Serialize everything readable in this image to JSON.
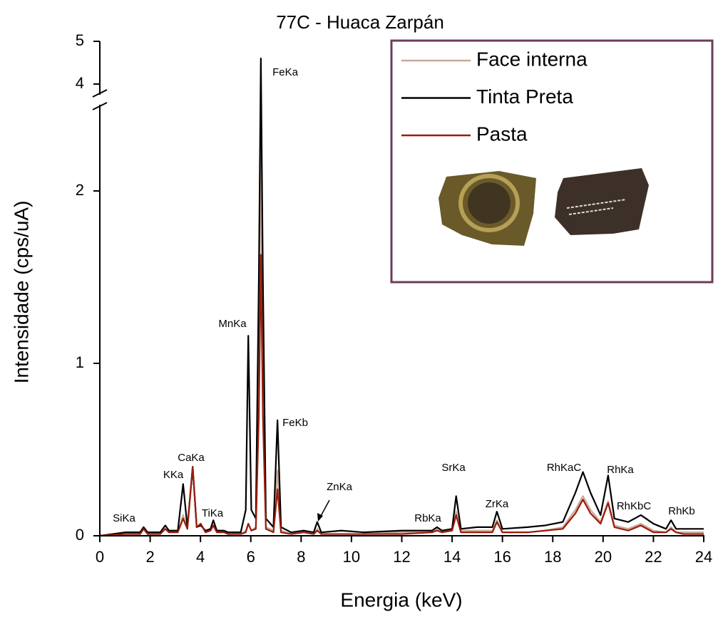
{
  "chart_data": {
    "type": "line",
    "title": "77C - Huaca Zarpán",
    "xlabel": "Energia (keV)",
    "ylabel": "Intensidade (cps/uA)",
    "xlim": [
      0,
      24
    ],
    "xticks": [
      0,
      2,
      4,
      6,
      8,
      10,
      12,
      14,
      16,
      18,
      20,
      22,
      24
    ],
    "ylim": [
      0,
      5
    ],
    "y_break": [
      2.5,
      3.75
    ],
    "yticks": [
      0,
      1,
      2,
      4,
      5
    ],
    "x": [
      0,
      1.0,
      1.6,
      1.74,
      1.9,
      2.4,
      2.6,
      2.75,
      3.1,
      3.31,
      3.48,
      3.69,
      3.85,
      4.01,
      4.2,
      4.4,
      4.51,
      4.65,
      4.93,
      5.1,
      5.6,
      5.8,
      5.9,
      6.02,
      6.2,
      6.32,
      6.4,
      6.48,
      6.6,
      6.9,
      7.06,
      7.2,
      7.6,
      8.1,
      8.5,
      8.64,
      8.8,
      9.6,
      10.5,
      12,
      13.2,
      13.4,
      13.6,
      14.0,
      14.16,
      14.35,
      15.0,
      15.6,
      15.78,
      16.0,
      17.0,
      17.7,
      18.4,
      18.9,
      19.2,
      19.5,
      19.9,
      20.2,
      20.45,
      21.0,
      21.5,
      22.0,
      22.5,
      22.7,
      22.9,
      23.2,
      24
    ],
    "series": [
      {
        "name": "Face interna",
        "color": "#c9a99a",
        "values": [
          0,
          0.01,
          0.01,
          0.04,
          0.01,
          0.01,
          0.04,
          0.02,
          0.02,
          0.12,
          0.04,
          0.4,
          0.05,
          0.07,
          0.02,
          0.03,
          0.06,
          0.02,
          0.02,
          0.01,
          0.01,
          0.03,
          0.07,
          0.03,
          0.05,
          1.0,
          2.33,
          1.0,
          0.05,
          0.03,
          0.38,
          0.03,
          0.01,
          0.02,
          0.01,
          0.04,
          0.01,
          0.01,
          0.01,
          0.02,
          0.02,
          0.04,
          0.02,
          0.03,
          0.14,
          0.03,
          0.03,
          0.03,
          0.09,
          0.02,
          0.02,
          0.03,
          0.05,
          0.15,
          0.23,
          0.15,
          0.08,
          0.2,
          0.06,
          0.04,
          0.07,
          0.03,
          0.02,
          0.05,
          0.02,
          0.02,
          0.02
        ]
      },
      {
        "name": "Tinta Preta",
        "color": "#000000",
        "values": [
          0,
          0.02,
          0.02,
          0.05,
          0.02,
          0.02,
          0.06,
          0.03,
          0.03,
          0.3,
          0.05,
          0.4,
          0.05,
          0.06,
          0.03,
          0.04,
          0.09,
          0.03,
          0.03,
          0.02,
          0.02,
          0.15,
          1.16,
          0.15,
          0.1,
          1.5,
          4.6,
          1.5,
          0.1,
          0.05,
          0.67,
          0.05,
          0.02,
          0.03,
          0.02,
          0.08,
          0.02,
          0.03,
          0.02,
          0.03,
          0.03,
          0.05,
          0.03,
          0.04,
          0.23,
          0.04,
          0.05,
          0.05,
          0.14,
          0.04,
          0.05,
          0.06,
          0.08,
          0.25,
          0.37,
          0.25,
          0.12,
          0.35,
          0.1,
          0.08,
          0.12,
          0.07,
          0.04,
          0.09,
          0.04,
          0.04,
          0.04
        ]
      },
      {
        "name": "Pasta",
        "color": "#9b1b0a",
        "values": [
          0,
          0.01,
          0.01,
          0.04,
          0.01,
          0.01,
          0.04,
          0.02,
          0.02,
          0.1,
          0.04,
          0.4,
          0.05,
          0.07,
          0.02,
          0.03,
          0.06,
          0.02,
          0.02,
          0.01,
          0.01,
          0.02,
          0.07,
          0.03,
          0.04,
          0.7,
          1.63,
          0.7,
          0.04,
          0.02,
          0.27,
          0.02,
          0.01,
          0.02,
          0.01,
          0.03,
          0.01,
          0.01,
          0.01,
          0.01,
          0.02,
          0.03,
          0.02,
          0.03,
          0.12,
          0.02,
          0.02,
          0.02,
          0.08,
          0.02,
          0.02,
          0.03,
          0.04,
          0.13,
          0.21,
          0.13,
          0.07,
          0.19,
          0.05,
          0.03,
          0.06,
          0.02,
          0.02,
          0.04,
          0.02,
          0.01,
          0.01
        ]
      }
    ],
    "annotations": [
      "SiKa",
      "KKa",
      "CaKa",
      "TiKa",
      "MnKa",
      "FeKa",
      "FeKb",
      "ZnKa",
      "RbKa",
      "SrKa",
      "ZrKa",
      "RhKaC",
      "RhKa",
      "RhKbC",
      "RhKb"
    ]
  }
}
